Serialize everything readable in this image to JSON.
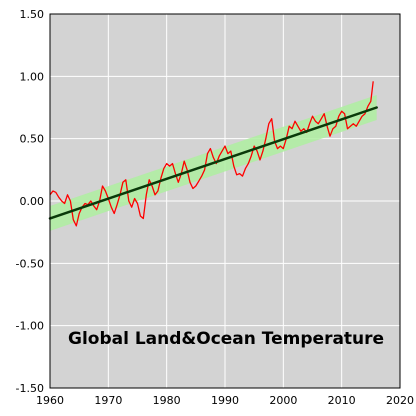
{
  "chart_data": {
    "type": "line",
    "title": "Global Land&Ocean Temperature",
    "xlabel": "",
    "ylabel": "",
    "xlim": [
      1960,
      2020
    ],
    "ylim": [
      -1.5,
      1.5
    ],
    "xticks": [
      1960,
      1970,
      1980,
      1990,
      2000,
      2010,
      2020
    ],
    "yticks": [
      1.5,
      1.0,
      0.5,
      0.0,
      -0.5,
      -1.0,
      -1.5
    ],
    "xtick_labels": [
      "1960",
      "1970",
      "1980",
      "1990",
      "2000",
      "2010",
      "2020"
    ],
    "ytick_labels": [
      "1.50",
      "1.00",
      "0.50",
      "0.00",
      "-0.50",
      "-1.00",
      "-1.50"
    ],
    "grid": true,
    "legend": "none",
    "colors": {
      "plot_background": "#d3d3d3",
      "grid": "#ffffff",
      "data_line": "#ff0000",
      "trend_line": "#0a3a0a",
      "trend_band": "#aeeea0"
    },
    "series": [
      {
        "kind": "monthly_anomaly",
        "color": "#ff0000",
        "x": [
          1960.0,
          1960.5,
          1961.0,
          1961.5,
          1962.0,
          1962.5,
          1963.0,
          1963.5,
          1964.0,
          1964.5,
          1965.0,
          1965.5,
          1966.0,
          1966.5,
          1967.0,
          1967.5,
          1968.0,
          1968.5,
          1969.0,
          1969.5,
          1970.0,
          1970.5,
          1971.0,
          1971.5,
          1972.0,
          1972.5,
          1973.0,
          1973.5,
          1974.0,
          1974.5,
          1975.0,
          1975.5,
          1976.0,
          1976.5,
          1977.0,
          1977.5,
          1978.0,
          1978.5,
          1979.0,
          1979.5,
          1980.0,
          1980.5,
          1981.0,
          1981.5,
          1982.0,
          1982.5,
          1983.0,
          1983.5,
          1984.0,
          1984.5,
          1985.0,
          1985.5,
          1986.0,
          1986.5,
          1987.0,
          1987.5,
          1988.0,
          1988.5,
          1989.0,
          1989.5,
          1990.0,
          1990.5,
          1991.0,
          1991.5,
          1992.0,
          1992.5,
          1993.0,
          1993.5,
          1994.0,
          1994.5,
          1995.0,
          1995.5,
          1996.0,
          1996.5,
          1997.0,
          1997.5,
          1998.0,
          1998.5,
          1999.0,
          1999.5,
          2000.0,
          2000.5,
          2001.0,
          2001.5,
          2002.0,
          2002.5,
          2003.0,
          2003.5,
          2004.0,
          2004.5,
          2005.0,
          2005.5,
          2006.0,
          2006.5,
          2007.0,
          2007.5,
          2008.0,
          2008.5,
          2009.0,
          2009.5,
          2010.0,
          2010.5,
          2011.0,
          2011.5,
          2012.0,
          2012.5,
          2013.0,
          2013.5,
          2014.0,
          2014.5,
          2015.0,
          2015.4
        ],
        "values": [
          0.05,
          0.08,
          0.07,
          0.03,
          0.0,
          -0.02,
          0.05,
          0.0,
          -0.15,
          -0.2,
          -0.1,
          -0.05,
          -0.02,
          -0.03,
          0.0,
          -0.04,
          -0.07,
          0.0,
          0.12,
          0.08,
          0.02,
          -0.05,
          -0.1,
          -0.03,
          0.05,
          0.15,
          0.17,
          0.0,
          -0.05,
          0.02,
          -0.02,
          -0.12,
          -0.14,
          0.05,
          0.17,
          0.12,
          0.05,
          0.08,
          0.18,
          0.26,
          0.3,
          0.28,
          0.3,
          0.22,
          0.15,
          0.22,
          0.32,
          0.25,
          0.15,
          0.1,
          0.12,
          0.16,
          0.2,
          0.25,
          0.38,
          0.42,
          0.35,
          0.3,
          0.36,
          0.4,
          0.44,
          0.38,
          0.4,
          0.28,
          0.21,
          0.22,
          0.2,
          0.26,
          0.3,
          0.36,
          0.44,
          0.4,
          0.33,
          0.4,
          0.5,
          0.62,
          0.66,
          0.48,
          0.42,
          0.44,
          0.42,
          0.5,
          0.6,
          0.58,
          0.64,
          0.6,
          0.56,
          0.58,
          0.55,
          0.62,
          0.68,
          0.64,
          0.62,
          0.66,
          0.7,
          0.6,
          0.52,
          0.58,
          0.6,
          0.68,
          0.72,
          0.7,
          0.58,
          0.6,
          0.62,
          0.6,
          0.64,
          0.68,
          0.7,
          0.76,
          0.8,
          0.96
        ]
      },
      {
        "kind": "linear_trend",
        "color": "#0a3a0a",
        "x": [
          1960,
          2016
        ],
        "values": [
          -0.14,
          0.75
        ],
        "band_halfwidth": 0.1
      }
    ]
  }
}
